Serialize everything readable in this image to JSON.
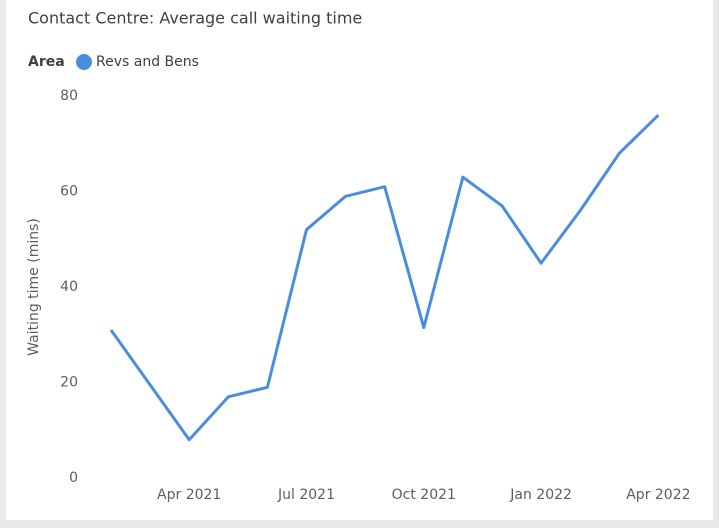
{
  "chart_data": {
    "type": "line",
    "title": "Contact Centre: Average call waiting time",
    "legend_title": "Area",
    "y_label": "Waiting time (mins)",
    "categories": [
      null,
      null,
      "Apr 2021",
      null,
      null,
      "Jul 2021",
      null,
      null,
      "Oct 2021",
      null,
      null,
      "Jan 2022",
      null,
      null,
      "Apr 2022"
    ],
    "series": [
      {
        "name": "Revs and Bens",
        "color": "#4a8ddc",
        "values": [
          31,
          19.5,
          8,
          17,
          19,
          52,
          59,
          61,
          31.5,
          63,
          57,
          45,
          56,
          68,
          76
        ]
      }
    ],
    "ylim": [
      0,
      80
    ],
    "yticks": [
      0,
      20,
      40,
      60,
      80
    ],
    "grid": false
  }
}
